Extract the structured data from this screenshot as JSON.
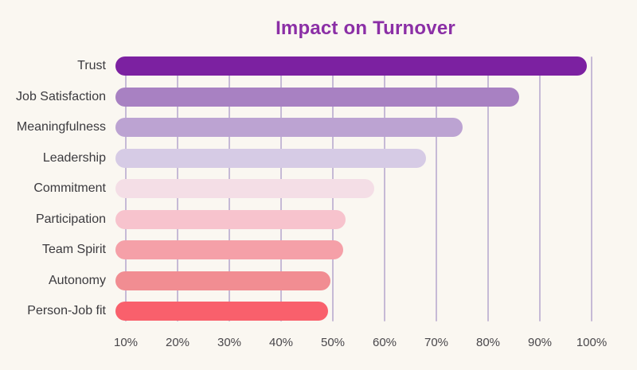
{
  "chart_data": {
    "type": "bar",
    "orientation": "horizontal",
    "title": "Impact on Turnover",
    "categories": [
      "Trust",
      "Job Satisfaction",
      "Meaningfulness",
      "Leadership",
      "Commitment",
      "Participation",
      "Team Spirit",
      "Autonomy",
      "Person-Job fit"
    ],
    "values": [
      99,
      86,
      75,
      68,
      58,
      52.5,
      52,
      49.5,
      49
    ],
    "unit": "%",
    "x_ticks": [
      "10%",
      "20%",
      "30%",
      "40%",
      "50%",
      "60%",
      "70%",
      "80%",
      "90%",
      "100%"
    ],
    "x_tick_values": [
      10,
      20,
      30,
      40,
      50,
      60,
      70,
      80,
      90,
      100
    ],
    "xlim": [
      8,
      105
    ],
    "grid": "vertical",
    "legend": "none",
    "data_labels": "none",
    "bar_colors": [
      "#7c21a1",
      "#a881c2",
      "#bca3d2",
      "#d6cbe5",
      "#f4dee6",
      "#f7c3cd",
      "#f5a0a8",
      "#f18d92",
      "#f9606c"
    ],
    "background_color": "#faf7f1",
    "title_color": "#8b2fa6",
    "label_color": "#3b3a3e",
    "tick_color": "#49474b",
    "gridline_color": "#c6bad6"
  }
}
